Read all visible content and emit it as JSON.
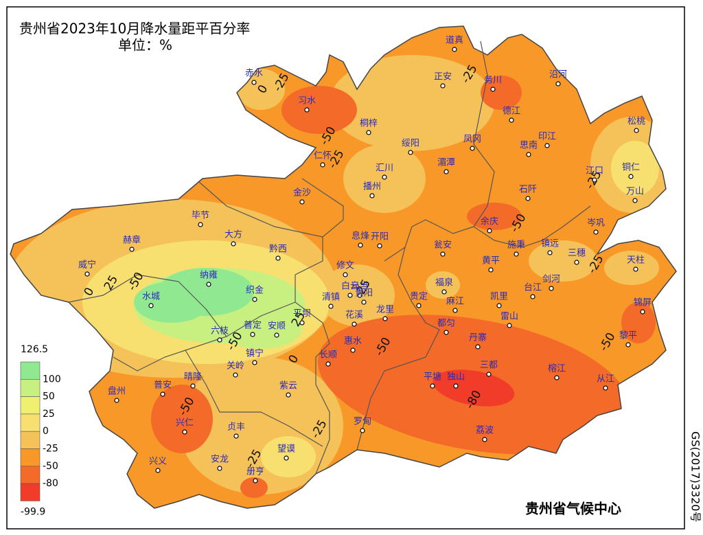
{
  "title": "贵州省2023年10月降水量距平百分率",
  "unit": "单位：%",
  "legend": {
    "values": [
      126.5,
      100,
      50,
      25,
      0,
      -25,
      -50,
      -80,
      -99.9
    ],
    "colors": [
      "#90e890",
      "#c8f080",
      "#f0f070",
      "#f8e070",
      "#f5c25a",
      "#f89828",
      "#f46a28",
      "#f03c28"
    ]
  },
  "cities": [
    "道真",
    "赤水",
    "习水",
    "正安",
    "务川",
    "沿河",
    "德江",
    "桐梓",
    "松桃",
    "绥阳",
    "凤冈",
    "印江",
    "思南",
    "仁怀",
    "汇川",
    "湄潭",
    "江口",
    "铜仁",
    "播州",
    "石阡",
    "万山",
    "金沙",
    "毕节",
    "赫章",
    "大方",
    "息烽",
    "开阳",
    "瓮安",
    "余庆",
    "施秉",
    "镇远",
    "岑巩",
    "黔西",
    "三穗",
    "天柱",
    "威宁",
    "纳雍",
    "修文",
    "黄平",
    "福泉",
    "凯里",
    "台江",
    "剑河",
    "水城",
    "织金",
    "白云",
    "清镇",
    "乌当",
    "贵阳",
    "贵定",
    "麻江",
    "锦屏",
    "平坝",
    "花溪",
    "龙里",
    "雷山",
    "普定",
    "安顺",
    "六枝",
    "丹寨",
    "都匀",
    "黎平",
    "惠水",
    "镇宁",
    "长顺",
    "关岭",
    "三都",
    "紫云",
    "晴隆",
    "普安",
    "盘州",
    "平塘",
    "独山",
    "榕江",
    "从江",
    "罗甸",
    "兴仁",
    "贞丰",
    "荔波",
    "望谟",
    "兴义",
    "安龙",
    "册亨"
  ],
  "contour_labels": [
    0,
    -25,
    -50,
    -25,
    -25,
    -25,
    -50,
    -25,
    -50,
    25,
    25,
    -50,
    0,
    -50,
    0,
    25,
    -50,
    -50,
    -25,
    -25,
    -80
  ],
  "credit": "贵州省气候中心",
  "approval": "GS(2017)3320号"
}
